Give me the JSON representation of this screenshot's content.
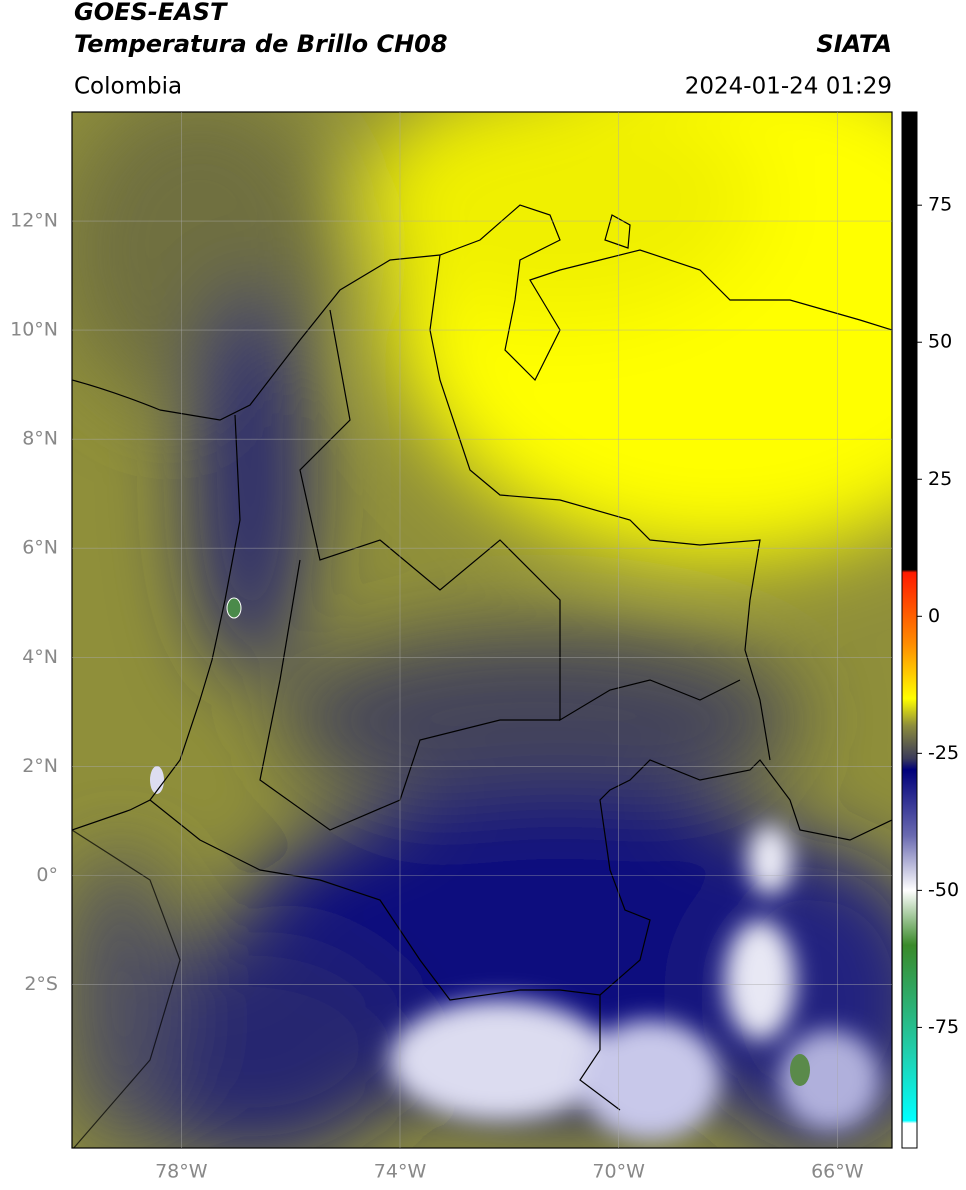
{
  "header": {
    "title_line1": "GOES-EAST",
    "title_line2": "Temperatura de Brillo CH08",
    "source": "SIATA",
    "region": "Colombia",
    "datetime": "2024-01-24 01:29"
  },
  "map": {
    "xlim": [
      -80,
      -65
    ],
    "ylim": [
      -5,
      14
    ],
    "xticks": [
      {
        "value": -78,
        "label": "78°W"
      },
      {
        "value": -74,
        "label": "74°W"
      },
      {
        "value": -70,
        "label": "70°W"
      },
      {
        "value": -66,
        "label": "66°W"
      }
    ],
    "yticks": [
      {
        "value": 12,
        "label": "12°N"
      },
      {
        "value": 10,
        "label": "10°N"
      },
      {
        "value": 8,
        "label": "8°N"
      },
      {
        "value": 6,
        "label": "6°N"
      },
      {
        "value": 4,
        "label": "4°N"
      },
      {
        "value": 2,
        "label": "2°N"
      },
      {
        "value": 0,
        "label": "0°"
      },
      {
        "value": -2,
        "label": "2°S"
      }
    ],
    "grid": true
  },
  "colorbar": {
    "lim": [
      -97,
      92
    ],
    "ticks": [
      75,
      50,
      25,
      0,
      -25,
      -50,
      -75
    ],
    "colors": [
      [
        92,
        "#000000"
      ],
      [
        8.5,
        "#000000"
      ],
      [
        8,
        "#ff1a00"
      ],
      [
        -5,
        "#ff8c00"
      ],
      [
        -15,
        "#ffff00"
      ],
      [
        -20,
        "#8c8c3c"
      ],
      [
        -26,
        "#3a3a5a"
      ],
      [
        -28,
        "#00007a"
      ],
      [
        -40,
        "#6a6ab0"
      ],
      [
        -50,
        "#ffffff"
      ],
      [
        -60,
        "#3a8a2a"
      ],
      [
        -80,
        "#20d0b0"
      ],
      [
        -92,
        "#00ffff"
      ],
      [
        -92.5,
        "#ffffff"
      ],
      [
        -97,
        "#ffffff"
      ]
    ]
  }
}
